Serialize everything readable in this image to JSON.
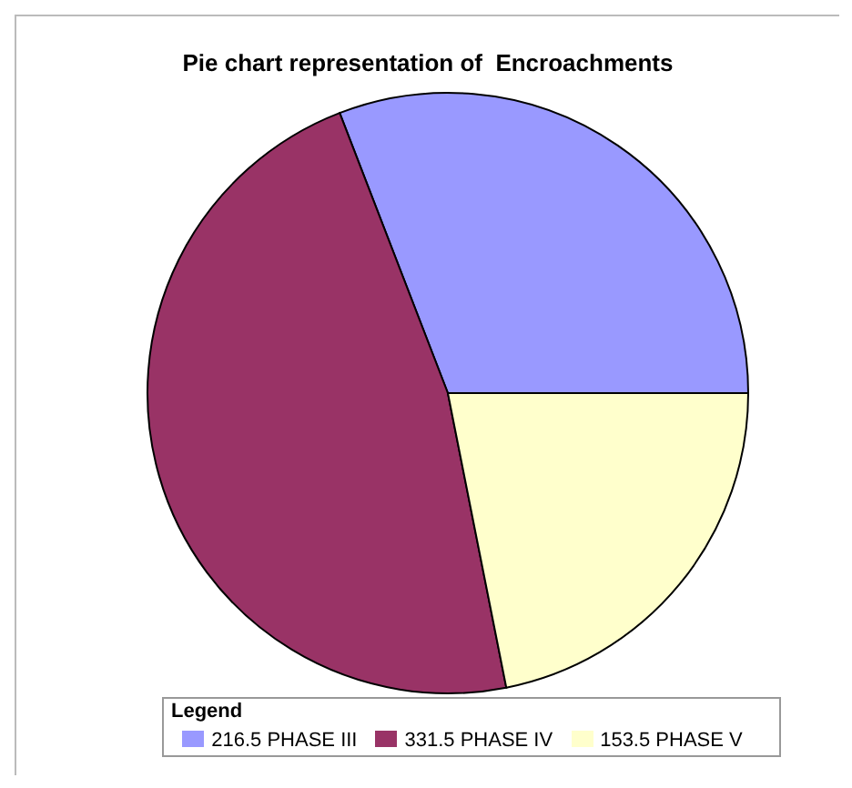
{
  "chart_data": {
    "type": "pie",
    "title": "Pie chart representation of  Encroachments",
    "legend_title": "Legend",
    "legend": "bottom",
    "categories": [
      "216.5 PHASE III",
      "331.5 PHASE IV",
      "153.5 PHASE V"
    ],
    "values": [
      216.5,
      331.5,
      153.5
    ],
    "colors": [
      "#9999ff",
      "#993366",
      "#ffffcc"
    ]
  }
}
